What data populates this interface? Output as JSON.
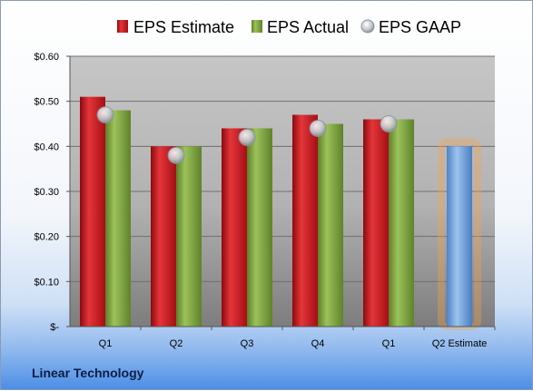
{
  "company_name": "Linear Technology",
  "colors": {
    "estimate": "#c0151b",
    "actual": "#78a03a",
    "gaap": "#b8bcc4",
    "forecast": "#6b9fdc",
    "forecast_glow": "#f4a24a"
  },
  "chart_data": {
    "type": "bar",
    "title": "",
    "xlabel": "",
    "ylabel": "",
    "categories": [
      "Q1",
      "Q2",
      "Q3",
      "Q4",
      "Q1",
      "Q2 Estimate"
    ],
    "ylim": [
      0,
      0.6
    ],
    "yticks": [
      0,
      0.1,
      0.2,
      0.3,
      0.4,
      0.5,
      0.6
    ],
    "ytick_labels": [
      "$-",
      "$0.10",
      "$0.20",
      "$0.30",
      "$0.40",
      "$0.50",
      "$0.60"
    ],
    "grid": true,
    "legend_position": "top",
    "series": [
      {
        "name": "EPS Estimate",
        "kind": "bar",
        "color": "#c0151b",
        "values": [
          0.51,
          0.4,
          0.44,
          0.47,
          0.46,
          null
        ]
      },
      {
        "name": "EPS Actual",
        "kind": "bar",
        "color": "#78a03a",
        "values": [
          0.48,
          0.4,
          0.44,
          0.45,
          0.46,
          null
        ]
      },
      {
        "name": "EPS GAAP",
        "kind": "marker",
        "color": "#b8bcc4",
        "values": [
          0.47,
          0.38,
          0.42,
          0.44,
          0.45,
          null
        ]
      }
    ],
    "forecast": {
      "category_index": 5,
      "value": 0.4,
      "color": "#6b9fdc"
    }
  }
}
